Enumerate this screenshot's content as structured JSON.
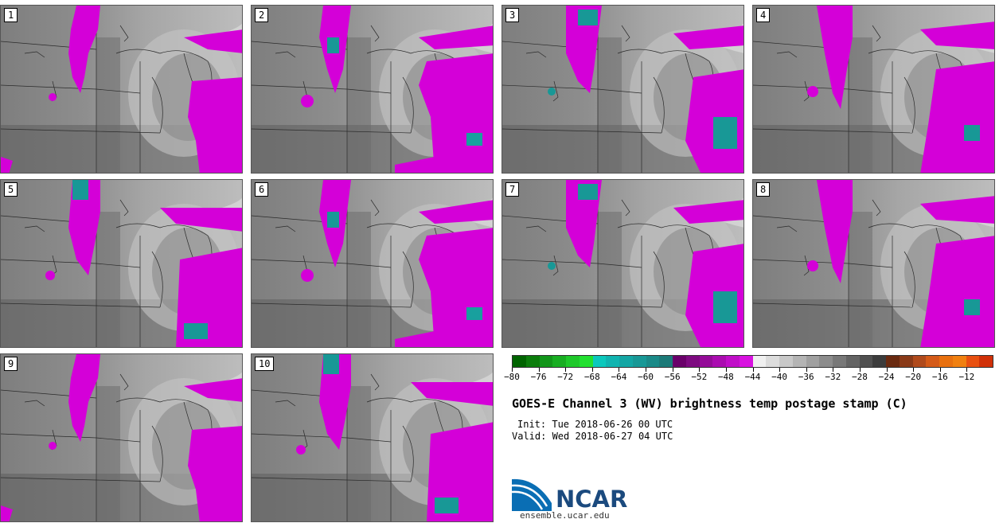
{
  "panels": [
    "1",
    "2",
    "3",
    "4",
    "5",
    "6",
    "7",
    "8",
    "9",
    "10"
  ],
  "colorbar": {
    "ticks": [
      "-80",
      "-76",
      "-72",
      "-68",
      "-64",
      "-60",
      "-56",
      "-52",
      "-48",
      "-44",
      "-40",
      "-36",
      "-32",
      "-28",
      "-24",
      "-20",
      "-16",
      "-12"
    ],
    "colors": [
      "#006400",
      "#0b7d0b",
      "#12961a",
      "#18ae22",
      "#1ec82a",
      "#22e030",
      "#0bc8bc",
      "#10b4b0",
      "#14a6a4",
      "#189896",
      "#1a8a88",
      "#1c7a78",
      "#6a006a",
      "#7d0a80",
      "#940b98",
      "#aa0cb0",
      "#c00ec8",
      "#d812e0",
      "#f0f0f0",
      "#dcdcdc",
      "#c8c8c8",
      "#b4b4b4",
      "#a0a0a0",
      "#8c8c8c",
      "#787878",
      "#646464",
      "#505050",
      "#3c3c3c",
      "#6a2a10",
      "#8a3a18",
      "#b04a1c",
      "#d45a18",
      "#e8700e",
      "#f08010",
      "#e85010",
      "#d03008"
    ]
  },
  "title": "GOES-E Channel 3 (WV) brightness temp postage stamp (C)",
  "init": "Init: Tue 2018-06-26 00 UTC",
  "valid": "Valid: Wed 2018-06-27 04 UTC",
  "logo": {
    "name": "NCAR",
    "url": "ensemble.ucar.edu"
  }
}
